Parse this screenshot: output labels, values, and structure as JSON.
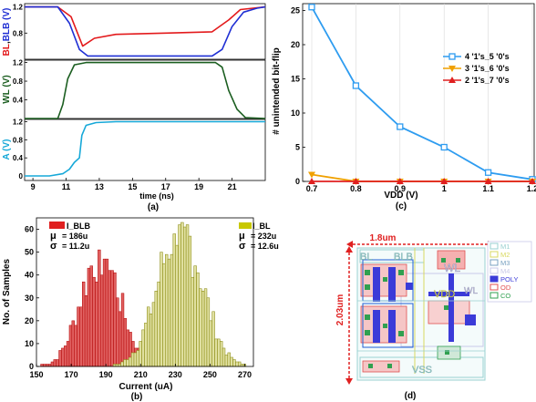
{
  "panels": {
    "a": {
      "caption": "(a)",
      "xlabel": "time (ns)",
      "xticks": [
        "9",
        "11",
        "13",
        "15",
        "17",
        "19",
        "21"
      ],
      "sub": [
        {
          "ylabel_parts": [
            "BL",
            ",",
            "BLB",
            " (V)"
          ],
          "yticks": [
            "1.2",
            "0.8"
          ]
        },
        {
          "ylabel": "WL (V)",
          "yticks": [
            "1.2",
            "0.8",
            "0.4"
          ]
        },
        {
          "ylabel": "A (V)",
          "yticks": [
            "1.2",
            "0.8",
            "0.4",
            "0"
          ]
        }
      ],
      "colors": {
        "BL": "#e31a1c",
        "BLB": "#1f2fd4",
        "WL": "#1b5e20",
        "A": "#16a8d8"
      }
    },
    "b": {
      "caption": "(b)",
      "xlabel": "Current (uA)",
      "ylabel": "No. of Samples",
      "xticks": [
        "150",
        "170",
        "190",
        "210",
        "230",
        "250",
        "270"
      ],
      "yticks": [
        "0",
        "10",
        "20",
        "30",
        "40",
        "50",
        "60"
      ],
      "legend_blb": {
        "name": "I_BLB",
        "mu": "= 186u",
        "sigma": "= 11.2u"
      },
      "legend_bl": {
        "name": "I_BL",
        "mu": "= 232u",
        "sigma": "= 12.6u"
      },
      "mu_symbol": "μ",
      "sigma_symbol": "σ"
    },
    "c": {
      "caption": "(c)",
      "xlabel": "VDD (V)",
      "ylabel": "# unintended bit-flip",
      "xticks": [
        "0.7",
        "0.8",
        "0.9",
        "1",
        "1.1",
        "1.2"
      ],
      "yticks": [
        "0",
        "5",
        "10",
        "15",
        "20",
        "25"
      ]
    },
    "d": {
      "caption": "(d)",
      "width_label": "1.8um",
      "height_label": "2.03um",
      "labels": {
        "bl": "BL",
        "blb": "BLB",
        "wl": "WL",
        "vdd": "VDD",
        "vss": "VSS"
      },
      "legend": [
        "M1",
        "M2",
        "M3",
        "M4",
        "POLY",
        "OD",
        "CO"
      ],
      "legend_colors": [
        "#9ad0d0",
        "#d8d860",
        "#78a0c0",
        "#c9c9e8",
        "#3b3bd8",
        "#e05050",
        "#30a050"
      ]
    }
  },
  "chart_data": [
    {
      "panel": "a",
      "type": "line",
      "xlabel": "time (ns)",
      "xlim": [
        8.5,
        23
      ],
      "subplots": [
        {
          "ylabel": "BL, BLB (V)",
          "ylim": [
            0.4,
            1.25
          ],
          "series": [
            {
              "name": "BL",
              "x": [
                8.5,
                10.5,
                11.3,
                12.0,
                12.7,
                14,
                17,
                19.8,
                20.8,
                21.5,
                23
              ],
              "y": [
                1.2,
                1.2,
                1.05,
                0.6,
                0.72,
                0.78,
                0.8,
                0.82,
                1.0,
                1.16,
                1.2
              ]
            },
            {
              "name": "BLB",
              "x": [
                8.5,
                10.5,
                11.2,
                11.8,
                12.3,
                15,
                19.8,
                20.4,
                21.0,
                21.7,
                22.5,
                23
              ],
              "y": [
                1.2,
                1.2,
                0.95,
                0.55,
                0.45,
                0.45,
                0.45,
                0.55,
                0.9,
                1.12,
                1.18,
                1.2
              ]
            }
          ]
        },
        {
          "ylabel": "WL (V)",
          "ylim": [
            0,
            1.25
          ],
          "series": [
            {
              "name": "WL",
              "x": [
                8.5,
                10.5,
                10.8,
                11.1,
                11.5,
                12.2,
                20.0,
                20.4,
                20.8,
                21.3,
                21.8,
                23
              ],
              "y": [
                0,
                0,
                0.3,
                0.85,
                1.15,
                1.2,
                1.2,
                1.1,
                0.6,
                0.2,
                0.02,
                0
              ]
            }
          ]
        },
        {
          "ylabel": "A (V)",
          "ylim": [
            -0.1,
            1.25
          ],
          "series": [
            {
              "name": "A",
              "x": [
                8.5,
                10.0,
                10.8,
                11.2,
                11.5,
                11.8,
                11.95,
                12.2,
                12.8,
                14,
                23
              ],
              "y": [
                0,
                0,
                0.05,
                0.15,
                0.3,
                0.4,
                0.9,
                1.12,
                1.18,
                1.2,
                1.2
              ]
            }
          ]
        }
      ]
    },
    {
      "panel": "b",
      "type": "bar",
      "xlabel": "Current (uA)",
      "ylabel": "No. of Samples",
      "xlim": [
        150,
        275
      ],
      "ylim": [
        0,
        65
      ],
      "bin_width": 1.5,
      "series": [
        {
          "name": "I_BLB",
          "mean": 186,
          "sigma": 11.2,
          "peak": 51
        },
        {
          "name": "I_BL",
          "mean": 232,
          "sigma": 12.6,
          "peak": 63
        }
      ]
    },
    {
      "panel": "c",
      "type": "line",
      "xlabel": "VDD (V)",
      "ylabel": "# unintended bit-flip",
      "ylim": [
        0,
        26
      ],
      "legend_position": "right",
      "series": [
        {
          "name": "4 '1's_5 '0's",
          "color": "#2e9cf0",
          "marker": "square",
          "x": [
            0.7,
            0.8,
            0.9,
            1.0,
            1.1,
            1.2
          ],
          "y": [
            25.5,
            14,
            8,
            5,
            1.3,
            0.3
          ]
        },
        {
          "name": "3 '1's_6 '0's",
          "color": "#f0a000",
          "marker": "triangle-down",
          "x": [
            0.7,
            0.8,
            0.9,
            1.0,
            1.1,
            1.2
          ],
          "y": [
            1,
            0,
            0,
            0,
            0,
            0
          ]
        },
        {
          "name": "2 '1's_7 '0's",
          "color": "#e02020",
          "marker": "triangle-up",
          "x": [
            0.7,
            0.8,
            0.9,
            1.0,
            1.1,
            1.2
          ],
          "y": [
            0,
            0,
            0,
            0,
            0,
            0
          ]
        }
      ]
    }
  ]
}
